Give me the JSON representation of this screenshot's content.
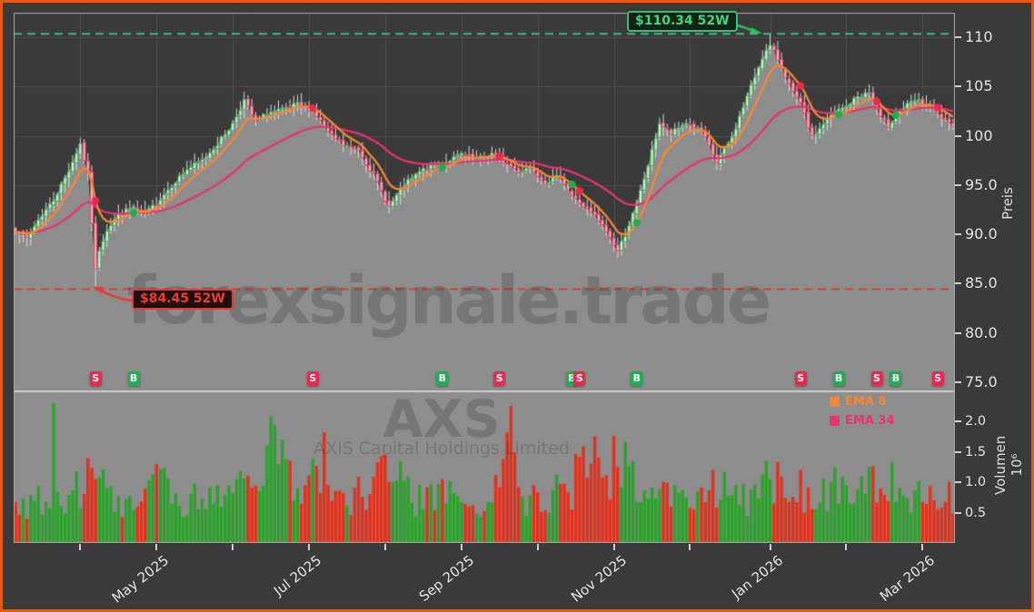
{
  "window": {
    "title": "AXS Chart"
  },
  "colors": {
    "frame_border": "#e7590e",
    "background": "#3a3a3a",
    "panel_fill": "#8d8d8d",
    "grid": "#4e4e4e",
    "axis_frame": "#a8a8a8",
    "separator": "#cccccc",
    "tick_text": "#e5e5e5",
    "candle_up": "#2fae4a",
    "candle_up_fill": "#d9eedd",
    "candle_down": "#e8395c",
    "candle_down_fill": "#f3b0bd",
    "wick": "#dcdcdc",
    "ema8": "#f58634",
    "ema34": "#e8336e",
    "volume_up": "#2ba32b",
    "volume_down": "#e5301c",
    "buy": "#23ad52",
    "sell": "#ea2950",
    "high_line": "#3bbd78",
    "high_label_text": "#3fd67f",
    "high_label_bg": "#0e2417",
    "low_line": "#e8392f",
    "low_label_text": "#f03b2e",
    "low_label_bg": "#200f0e"
  },
  "watermarks": {
    "main": "forexsignale.trade",
    "symbol": "AXS",
    "company": "AXIS Capital Holdings Limited"
  },
  "annotations": {
    "high": "$110.34 52W",
    "low": "$84.45 52W"
  },
  "legend": [
    {
      "label": "EMA 8",
      "color_key": "ema8"
    },
    {
      "label": "EMA 34",
      "color_key": "ema34"
    }
  ],
  "axes": {
    "price_title": "Preis",
    "volume_title": "Volumen",
    "volume_multiplier": "10⁶",
    "price_ticks": [
      {
        "label": "110",
        "value": 110
      },
      {
        "label": "105",
        "value": 105
      },
      {
        "label": "100",
        "value": 100
      },
      {
        "label": "95.0",
        "value": 95
      },
      {
        "label": "90.0",
        "value": 90
      },
      {
        "label": "85.0",
        "value": 85
      },
      {
        "label": "80.0",
        "value": 80
      },
      {
        "label": "75.0",
        "value": 75
      }
    ],
    "volume_ticks": [
      {
        "label": "2.0",
        "value": 2.0
      },
      {
        "label": "1.5",
        "value": 1.5
      },
      {
        "label": "1.0",
        "value": 1.0
      },
      {
        "label": "0.5",
        "value": 0.5
      }
    ],
    "x_ticks": [
      {
        "label": "",
        "day": 17
      },
      {
        "label": "May 2025",
        "day": 37
      },
      {
        "label": "",
        "day": 57
      },
      {
        "label": "Jul 2025",
        "day": 77
      },
      {
        "label": "",
        "day": 97
      },
      {
        "label": "Sep 2025",
        "day": 117
      },
      {
        "label": "",
        "day": 137
      },
      {
        "label": "Nov 2025",
        "day": 157
      },
      {
        "label": "",
        "day": 177
      },
      {
        "label": "Jan 2026",
        "day": 198
      },
      {
        "label": "",
        "day": 218
      },
      {
        "label": "Mar 2026",
        "day": 238
      }
    ]
  },
  "chart_data": {
    "type": "candlestick",
    "symbol": "AXS",
    "company": "AXIS Capital Holdings Limited",
    "num_days": 247,
    "grid": true,
    "legend_position": "volume-panel-top-right",
    "price_axis_range": [
      74.2,
      112.5
    ],
    "volume_axis_max_millions": 2.46,
    "high_52w": {
      "day": 198,
      "value": 110.34,
      "label": "$110.34 52W"
    },
    "low_52w": {
      "day": 21,
      "value": 84.45,
      "label": "$84.45 52W"
    },
    "emas": [
      8,
      34
    ],
    "price_anchors": [
      [
        0,
        90.5
      ],
      [
        3,
        89.6
      ],
      [
        6,
        91.5
      ],
      [
        10,
        93.5
      ],
      [
        14,
        96.5
      ],
      [
        17,
        99.2
      ],
      [
        19,
        96.0
      ],
      [
        21,
        86.5
      ],
      [
        22,
        88.5
      ],
      [
        24,
        90.5
      ],
      [
        27,
        92.0
      ],
      [
        31,
        92.8
      ],
      [
        34,
        92.0
      ],
      [
        37,
        93.2
      ],
      [
        41,
        95.0
      ],
      [
        45,
        96.6
      ],
      [
        49,
        97.5
      ],
      [
        53,
        99.2
      ],
      [
        57,
        101.2
      ],
      [
        60,
        103.6
      ],
      [
        63,
        101.3
      ],
      [
        66,
        102.3
      ],
      [
        70,
        102.6
      ],
      [
        74,
        103.2
      ],
      [
        78,
        102.6
      ],
      [
        82,
        100.3
      ],
      [
        86,
        99.0
      ],
      [
        90,
        98.6
      ],
      [
        94,
        96.0
      ],
      [
        98,
        92.8
      ],
      [
        102,
        95.0
      ],
      [
        106,
        96.3
      ],
      [
        110,
        97.2
      ],
      [
        113,
        97.4
      ],
      [
        117,
        98.1
      ],
      [
        121,
        97.6
      ],
      [
        125,
        98.2
      ],
      [
        128,
        97.4
      ],
      [
        132,
        96.4
      ],
      [
        135,
        96.9
      ],
      [
        139,
        95.3
      ],
      [
        143,
        95.9
      ],
      [
        146,
        93.9
      ],
      [
        148,
        93.2
      ],
      [
        152,
        91.8
      ],
      [
        155,
        90.3
      ],
      [
        158,
        88.3
      ],
      [
        160,
        90.0
      ],
      [
        163,
        93.0
      ],
      [
        166,
        97.0
      ],
      [
        169,
        101.3
      ],
      [
        172,
        100.2
      ],
      [
        176,
        101.4
      ],
      [
        180,
        100.4
      ],
      [
        184,
        97.3
      ],
      [
        188,
        99.8
      ],
      [
        192,
        104.0
      ],
      [
        196,
        108.0
      ],
      [
        198,
        109.2
      ],
      [
        201,
        107.0
      ],
      [
        204,
        104.3
      ],
      [
        206,
        103.2
      ],
      [
        209,
        99.8
      ],
      [
        212,
        101.2
      ],
      [
        215,
        102.4
      ],
      [
        218,
        103.0
      ],
      [
        221,
        104.0
      ],
      [
        224,
        104.4
      ],
      [
        227,
        101.8
      ],
      [
        229,
        101.0
      ],
      [
        232,
        102.6
      ],
      [
        236,
        103.6
      ],
      [
        239,
        103.2
      ],
      [
        242,
        102.2
      ],
      [
        246,
        100.8
      ]
    ],
    "volume_anchors_millions": [
      [
        0,
        0.55
      ],
      [
        5,
        0.7
      ],
      [
        9,
        0.9
      ],
      [
        10,
        2.3
      ],
      [
        11,
        0.9
      ],
      [
        14,
        0.8
      ],
      [
        17,
        0.95
      ],
      [
        21,
        1.15
      ],
      [
        24,
        0.95
      ],
      [
        28,
        0.7
      ],
      [
        34,
        0.85
      ],
      [
        38,
        1.1
      ],
      [
        44,
        0.65
      ],
      [
        50,
        0.72
      ],
      [
        56,
        0.85
      ],
      [
        60,
        0.9
      ],
      [
        64,
        0.8
      ],
      [
        67,
        1.5
      ],
      [
        70,
        1.2
      ],
      [
        74,
        0.9
      ],
      [
        78,
        1.05
      ],
      [
        82,
        1.35
      ],
      [
        86,
        0.72
      ],
      [
        92,
        0.8
      ],
      [
        96,
        1.1
      ],
      [
        100,
        1.0
      ],
      [
        104,
        0.72
      ],
      [
        108,
        0.65
      ],
      [
        112,
        0.78
      ],
      [
        118,
        0.6
      ],
      [
        124,
        0.85
      ],
      [
        127,
        0.8
      ],
      [
        130,
        1.75
      ],
      [
        133,
        0.62
      ],
      [
        138,
        0.7
      ],
      [
        143,
        0.9
      ],
      [
        148,
        1.05
      ],
      [
        152,
        1.25
      ],
      [
        155,
        1.1
      ],
      [
        158,
        1.3
      ],
      [
        161,
        1.35
      ],
      [
        164,
        0.95
      ],
      [
        168,
        0.88
      ],
      [
        172,
        0.75
      ],
      [
        176,
        0.65
      ],
      [
        180,
        0.75
      ],
      [
        184,
        0.9
      ],
      [
        188,
        0.8
      ],
      [
        192,
        0.72
      ],
      [
        196,
        0.95
      ],
      [
        200,
        1.0
      ],
      [
        203,
        0.9
      ],
      [
        206,
        0.9
      ],
      [
        210,
        0.75
      ],
      [
        214,
        0.8
      ],
      [
        217,
        1.0
      ],
      [
        221,
        0.85
      ],
      [
        224,
        0.9
      ],
      [
        227,
        1.2
      ],
      [
        230,
        1.1
      ],
      [
        234,
        0.8
      ],
      [
        238,
        1.0
      ],
      [
        241,
        0.75
      ],
      [
        244,
        0.85
      ],
      [
        246,
        0.6
      ]
    ],
    "signals": [
      {
        "day": 21,
        "type": "S"
      },
      {
        "day": 31,
        "type": "B"
      },
      {
        "day": 78,
        "type": "S"
      },
      {
        "day": 112,
        "type": "B"
      },
      {
        "day": 127,
        "type": "S"
      },
      {
        "day": 146,
        "type": "B"
      },
      {
        "day": 148,
        "type": "S"
      },
      {
        "day": 163,
        "type": "B"
      },
      {
        "day": 206,
        "type": "S"
      },
      {
        "day": 216,
        "type": "B"
      },
      {
        "day": 226,
        "type": "S"
      },
      {
        "day": 231,
        "type": "B"
      },
      {
        "day": 242,
        "type": "S"
      }
    ]
  }
}
